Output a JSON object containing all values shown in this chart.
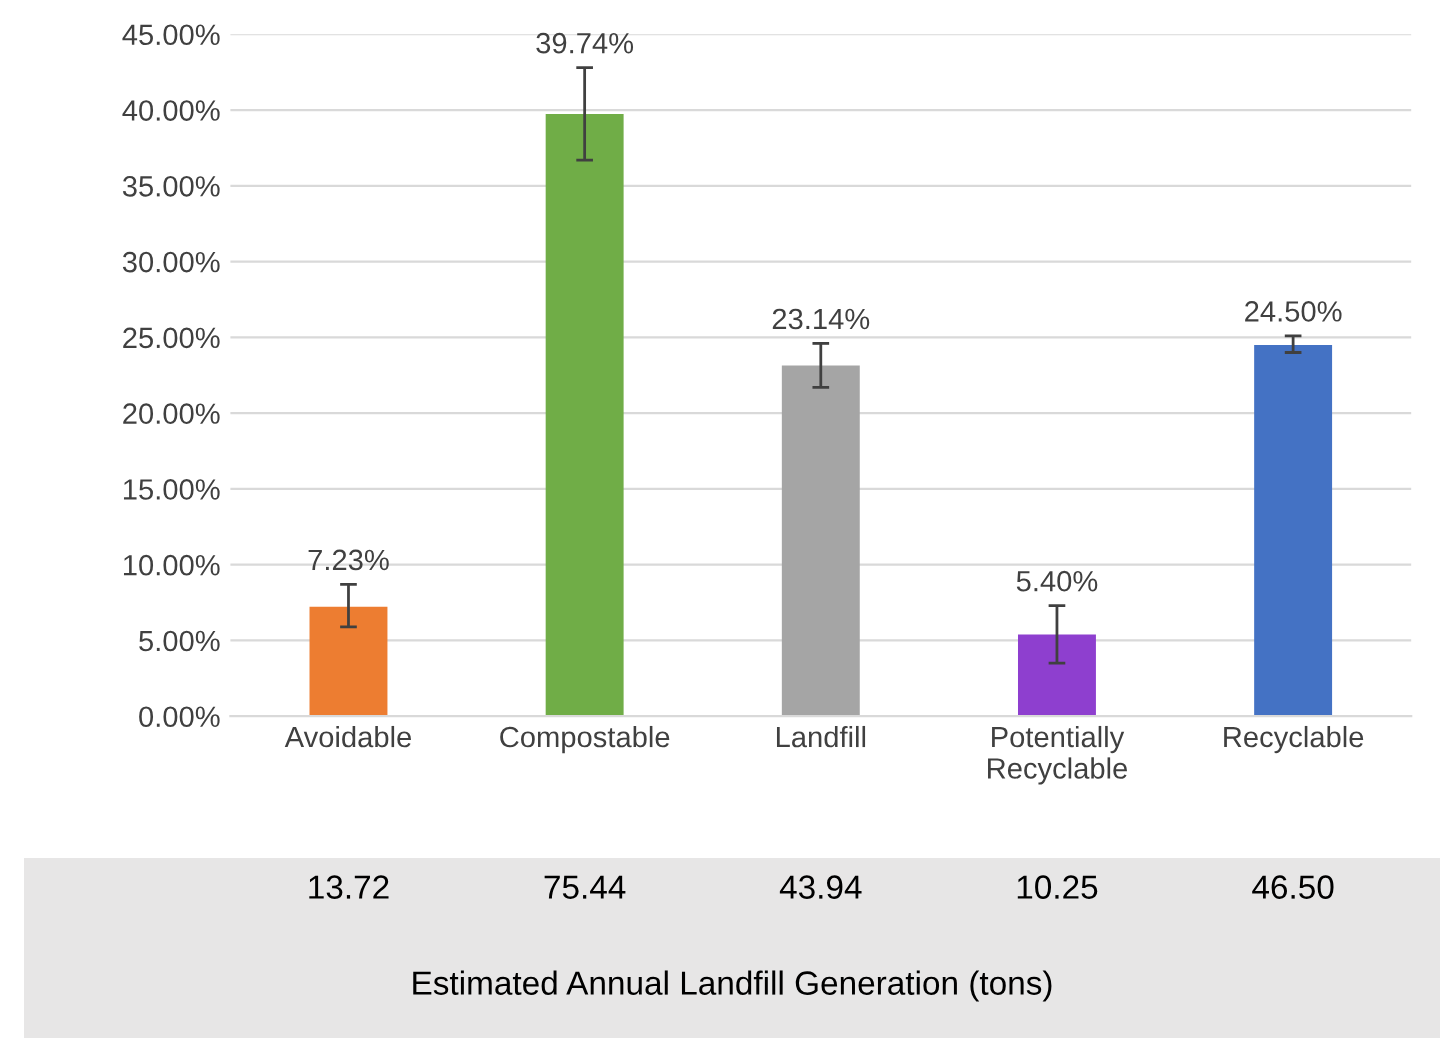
{
  "chart_data": {
    "type": "bar",
    "categories": [
      "Avoidable",
      "Compostable",
      "Landfill",
      "Potentially\nRecyclable",
      "Recyclable"
    ],
    "values": [
      7.23,
      39.74,
      23.14,
      5.4,
      24.5
    ],
    "value_labels": [
      "7.23%",
      "39.74%",
      "23.14%",
      "5.40%",
      "24.50%"
    ],
    "colors": [
      "#ed7d31",
      "#70ad47",
      "#a5a5a5",
      "#8e3fcf",
      "#4472c4"
    ],
    "errors": [
      [
        5.9,
        8.7
      ],
      [
        36.7,
        42.8
      ],
      [
        21.7,
        24.6
      ],
      [
        3.5,
        7.3
      ],
      [
        24.0,
        25.1
      ]
    ],
    "ylim": [
      0,
      45
    ],
    "yticks": [
      {
        "value": 0,
        "label": "0.00%"
      },
      {
        "value": 5,
        "label": "5.00%"
      },
      {
        "value": 10,
        "label": "10.00%"
      },
      {
        "value": 15,
        "label": "15.00%"
      },
      {
        "value": 20,
        "label": "20.00%"
      },
      {
        "value": 25,
        "label": "25.00%"
      },
      {
        "value": 30,
        "label": "30.00%"
      },
      {
        "value": 35,
        "label": "35.00%"
      },
      {
        "value": 40,
        "label": "40.00%"
      },
      {
        "value": 45,
        "label": "45.00%"
      }
    ],
    "grid": "y",
    "annotations": [
      "13.72",
      "75.44",
      "43.94",
      "10.25",
      "46.50",
      "Estimated Annual Landfill Generation (tons)"
    ]
  }
}
